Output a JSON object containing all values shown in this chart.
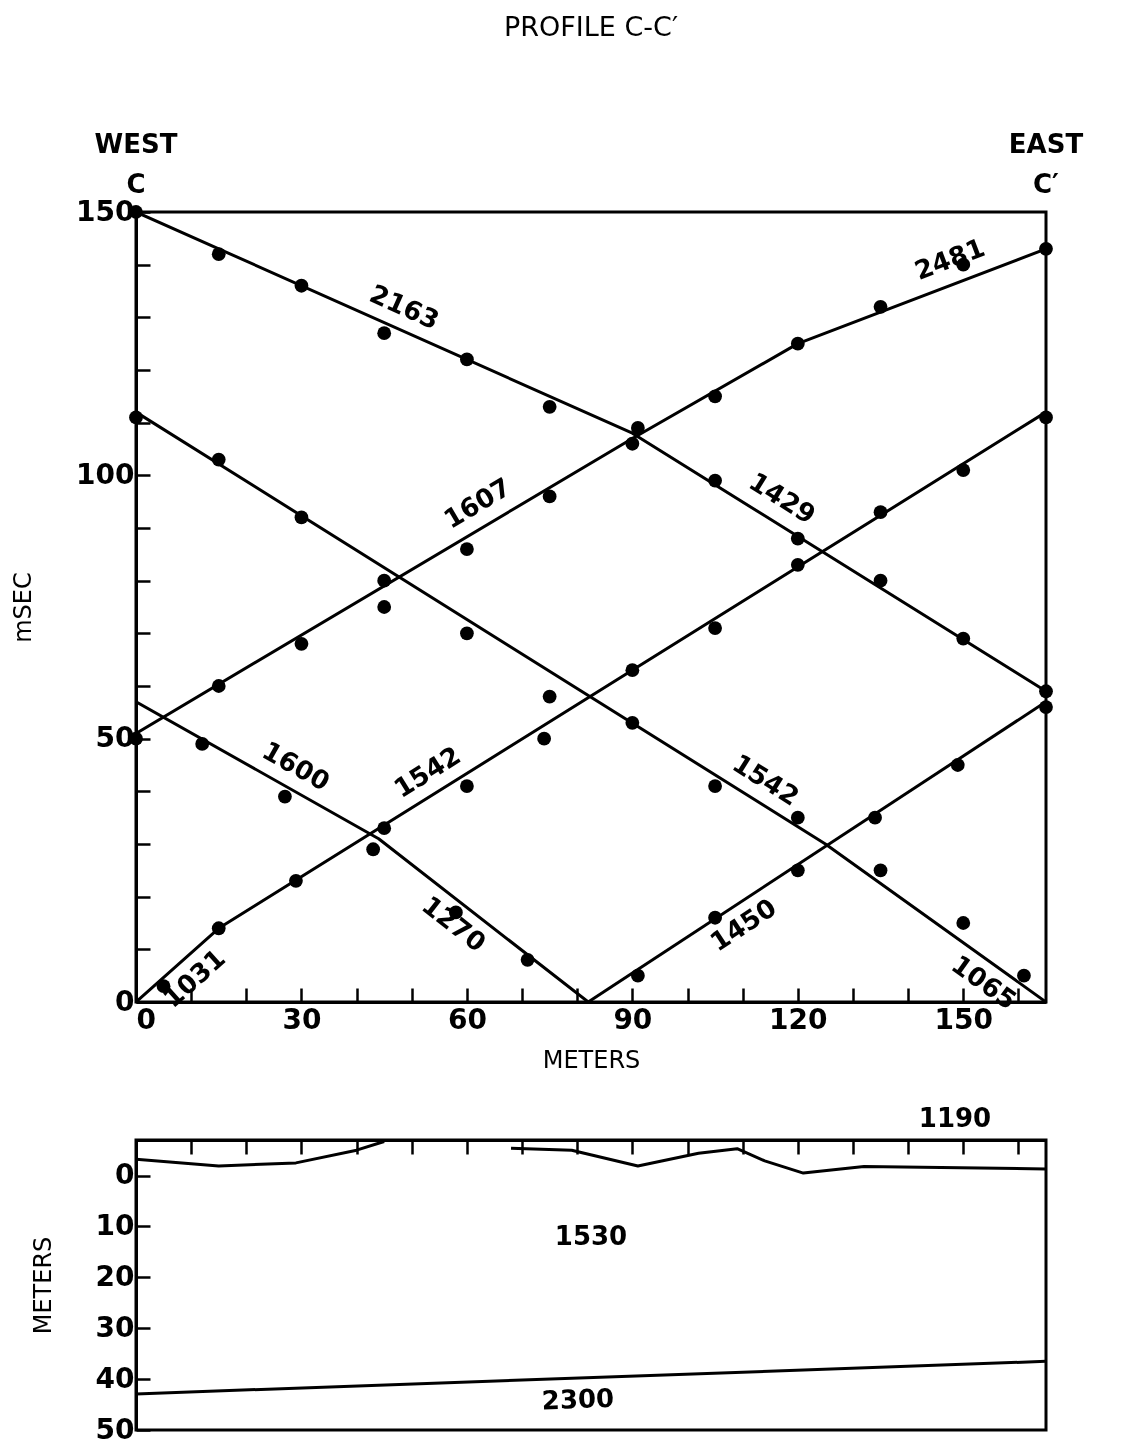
{
  "chart_data": [
    {
      "type": "line",
      "title": "PROFILE C-C′",
      "xlabel": "METERS",
      "ylabel": "mSEC",
      "xlim": [
        0,
        165
      ],
      "ylim": [
        0,
        150
      ],
      "xticks": [
        0,
        {
          "value": 10,
          "label": null
        },
        {
          "value": 20,
          "label": null
        },
        30,
        {
          "value": 40,
          "label": null
        },
        {
          "value": 50,
          "label": null
        },
        60,
        {
          "value": 70,
          "label": null
        },
        {
          "value": 80,
          "label": null
        },
        90,
        {
          "value": 100,
          "label": null
        },
        {
          "value": 110,
          "label": null
        },
        120,
        {
          "value": 130,
          "label": null
        },
        {
          "value": 140,
          "label": null
        },
        150,
        {
          "value": 160,
          "label": null
        }
      ],
      "yticks": [
        0,
        {
          "value": 10,
          "label": null
        },
        {
          "value": 20,
          "label": null
        },
        {
          "value": 30,
          "label": null
        },
        {
          "value": 40,
          "label": null
        },
        50,
        {
          "value": 60,
          "label": null
        },
        {
          "value": 70,
          "label": null
        },
        {
          "value": 80,
          "label": null
        },
        {
          "value": 90,
          "label": null
        },
        100,
        {
          "value": 110,
          "label": null
        },
        {
          "value": 120,
          "label": null
        },
        {
          "value": 130,
          "label": null
        },
        {
          "value": 140,
          "label": null
        },
        150
      ],
      "grid": false,
      "series": [
        {
          "color": "#000000",
          "x": [
            0,
            90,
            165
          ],
          "values": [
            150,
            108,
            59
          ]
        },
        {
          "color": "#000000",
          "x": [
            0,
            90,
            120,
            165
          ],
          "values": [
            51,
            107,
            125,
            143
          ]
        },
        {
          "color": "#000000",
          "x": [
            0,
            125,
            165
          ],
          "values": [
            112,
            30,
            0
          ]
        },
        {
          "color": "#000000",
          "x": [
            0,
            44,
            82
          ],
          "values": [
            57,
            31,
            0
          ]
        },
        {
          "color": "#000000",
          "x": [
            0,
            15,
            165
          ],
          "values": [
            0,
            14,
            112
          ]
        },
        {
          "color": "#000000",
          "x": [
            82,
            165
          ],
          "values": [
            0,
            57
          ]
        },
        {
          "type": "scatter",
          "color": "#000000",
          "x": [
            0,
            15,
            30,
            45,
            60,
            75,
            90,
            105,
            120,
            135,
            150,
            165,
            0,
            15,
            30,
            45,
            60,
            75,
            91,
            105,
            120,
            135,
            150,
            165,
            0,
            15,
            30,
            45,
            60,
            75,
            90,
            105,
            120,
            135,
            150,
            161,
            12,
            27,
            43,
            58,
            71,
            5,
            15,
            29,
            45,
            60,
            74,
            90,
            105,
            120,
            135,
            150,
            165,
            91,
            105,
            120,
            134,
            149,
            165
          ],
          "values": [
            150,
            142,
            136,
            127,
            122,
            113,
            106,
            99,
            88,
            80,
            69,
            59,
            50,
            60,
            68,
            75,
            86,
            96,
            109,
            115,
            125,
            132,
            140,
            143,
            111,
            103,
            92,
            80,
            70,
            58,
            53,
            41,
            35,
            25,
            15,
            5,
            49,
            39,
            29,
            17,
            8,
            3,
            14,
            23,
            33,
            41,
            50,
            63,
            71,
            83,
            93,
            101,
            111,
            5,
            16,
            25,
            35,
            45,
            56
          ]
        }
      ],
      "annotations": [
        "WEST",
        "C",
        "EAST",
        "C′",
        {
          "text": "2163",
          "x": 47,
          "y": 128
        },
        {
          "text": "1429",
          "x": 115,
          "y": 92
        },
        {
          "text": "1607",
          "x": 64,
          "y": 91
        },
        {
          "text": "2481",
          "x": 149,
          "y": 137
        },
        {
          "text": "1600",
          "x": 27,
          "y": 41
        },
        {
          "text": "1270",
          "x": 60,
          "y": 18
        },
        {
          "text": "1542",
          "x": 55,
          "y": 40
        },
        {
          "text": "1542",
          "x": 112,
          "y": 38.5
        },
        {
          "text": "1031",
          "x": 8,
          "y": 7.5
        },
        {
          "text": "1450",
          "x": 108,
          "y": 18
        },
        {
          "text": "1065",
          "x": 156,
          "y": 7
        }
      ]
    },
    {
      "type": "line",
      "ylabel": "METERS",
      "xlim": [
        0,
        165
      ],
      "ylim": [
        50,
        -7
      ],
      "tick_labels": "y",
      "grid": false,
      "xticks": [
        {
          "value": 10,
          "label": null
        },
        {
          "value": 20,
          "label": null
        },
        {
          "value": 30,
          "label": null
        },
        {
          "value": 40,
          "label": null
        },
        {
          "value": 50,
          "label": null
        },
        {
          "value": 60,
          "label": null
        },
        {
          "value": 70,
          "label": null
        },
        {
          "value": 80,
          "label": null
        },
        {
          "value": 90,
          "label": null
        },
        {
          "value": 100,
          "label": null
        },
        {
          "value": 110,
          "label": null
        },
        {
          "value": 120,
          "label": null
        },
        {
          "value": 130,
          "label": null
        },
        {
          "value": 140,
          "label": null
        },
        {
          "value": 150,
          "label": null
        },
        {
          "value": 160,
          "label": null
        }
      ],
      "yticks": [
        0,
        10,
        20,
        30,
        40,
        50
      ],
      "series": [
        {
          "color": "#000000",
          "x": [
            0,
            15,
            29,
            40,
            45,
            51,
            62,
            68,
            79,
            91,
            102,
            109,
            114,
            121,
            132,
            165
          ],
          "values": [
            -3.2,
            -1.9,
            -2.5,
            -5,
            -6.7,
            null,
            null,
            -5.4,
            -5,
            -1.9,
            -4.4,
            -5.3,
            -2.9,
            -0.5,
            -1.8,
            -1.3
          ]
        },
        {
          "color": "#000000",
          "x": [
            0,
            165
          ],
          "values": [
            42.9,
            36.5
          ]
        }
      ],
      "annotations": [
        "1190",
        "1530",
        {
          "text": "2300",
          "x": 80,
          "y": 39.8
        }
      ]
    }
  ]
}
